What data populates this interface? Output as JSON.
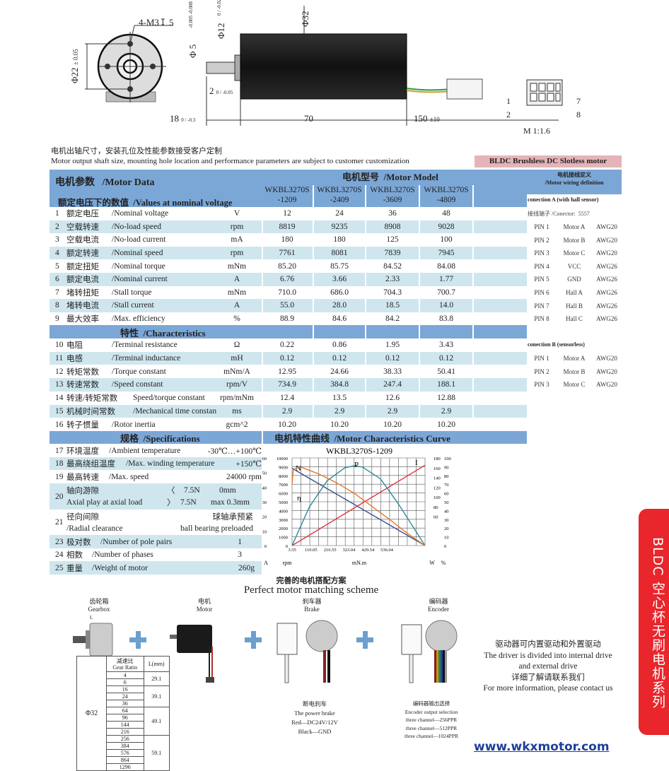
{
  "drawing": {
    "thread": "4-M3↧ 5",
    "d22": "Φ22",
    "d22_tol": "± 0.05",
    "d5": "Φ 5",
    "d5_tol_hi": "-0.005",
    "d5_tol_lo": "-0.008",
    "d12": "Φ12",
    "d12_tol": "0 / -0.02",
    "d32": "Φ32",
    "flange": "2",
    "flange_tol": "0 / -0.05",
    "shaft_len": "18",
    "shaft_tol": "0 / -0.3",
    "body_len": "70",
    "wire_len": "150",
    "wire_tol": "±10",
    "pin1": "1",
    "pin2": "2",
    "pin7": "7",
    "pin8": "8",
    "scale": "M 1:1.6"
  },
  "notes": {
    "cn": "电机出轴尺寸，安装孔位及性能参数接受客户定制",
    "en": "Motor output shaft size, mounting hole location and performance parameters are subject to customer customization",
    "bldc": "BLDC   Brushless DC Slotless motor"
  },
  "table": {
    "title_cn": "电机参数",
    "title_en": "/Motor Data",
    "sub_cn": "额定电压下的数值",
    "sub_en": "/Values at nominal voltage",
    "model_cn": "电机型号",
    "model_en": "/Motor Model",
    "models": [
      {
        "l1": "WKBL3270S",
        "l2": "-1209"
      },
      {
        "l1": "WKBL3270S",
        "l2": "-2409"
      },
      {
        "l1": "WKBL3270S",
        "l2": "-3609"
      },
      {
        "l1": "WKBL3270S",
        "l2": "-4809"
      }
    ],
    "rows1": [
      {
        "n": "1",
        "cn": "额定电压",
        "en": "/Nominal voltage",
        "unit": "V",
        "vals": [
          "12",
          "24",
          "36",
          "48"
        ]
      },
      {
        "n": "2",
        "cn": "空载转速",
        "en": "/No-load speed",
        "unit": "rpm",
        "vals": [
          "8819",
          "9235",
          "8908",
          "9028"
        ]
      },
      {
        "n": "3",
        "cn": "空载电流",
        "en": "/No-load current",
        "unit": "mA",
        "vals": [
          "180",
          "180",
          "125",
          "100"
        ]
      },
      {
        "n": "4",
        "cn": "额定转速",
        "en": "/Nominal speed",
        "unit": "rpm",
        "vals": [
          "7761",
          "8081",
          "7839",
          "7945"
        ]
      },
      {
        "n": "5",
        "cn": "额定扭矩",
        "en": "/Nominal torque",
        "unit": "mNm",
        "vals": [
          "85.20",
          "85.75",
          "84.52",
          "84.08"
        ]
      },
      {
        "n": "6",
        "cn": "额定电流",
        "en": "/Nominal current",
        "unit": "A",
        "vals": [
          "6.76",
          "3.66",
          "2.33",
          "1.77"
        ]
      },
      {
        "n": "7",
        "cn": "堵转扭矩",
        "en": "/Stall torque",
        "unit": "mNm",
        "vals": [
          "710.0",
          "686.0",
          "704.3",
          "700.7"
        ]
      },
      {
        "n": "8",
        "cn": "堵转电流",
        "en": "/Stall current",
        "unit": "A",
        "vals": [
          "55.0",
          "28.0",
          "18.5",
          "14.0"
        ]
      },
      {
        "n": "9",
        "cn": "最大效率",
        "en": "/Max. efficiency",
        "unit": "%",
        "vals": [
          "88.9",
          "84.6",
          "84.2",
          "83.8"
        ]
      }
    ],
    "sect2_cn": "特性",
    "sect2_en": "/Characteristics",
    "rows2": [
      {
        "n": "10",
        "cn": "电阻",
        "en": "/Terminal resistance",
        "unit": "Ω",
        "vals": [
          "0.22",
          "0.86",
          "1.95",
          "3.43"
        ]
      },
      {
        "n": "11",
        "cn": "电感",
        "en": "/Terminal inductance",
        "unit": "mH",
        "vals": [
          "0.12",
          "0.12",
          "0.12",
          "0.12"
        ]
      },
      {
        "n": "12",
        "cn": "转矩常数",
        "en": "/Torque constant",
        "unit": "mNm/A",
        "vals": [
          "12.95",
          "24.66",
          "38.33",
          "50.41"
        ]
      },
      {
        "n": "13",
        "cn": "转速常数",
        "en": "/Speed constant",
        "unit": "rpm/V",
        "vals": [
          "734.9",
          "384.8",
          "247.4",
          "188.1"
        ]
      },
      {
        "n": "14",
        "cn": "转速/转矩常数",
        "en": "Speed/torque constant",
        "unit": "rpm/mNm",
        "vals": [
          "12.4",
          "13.5",
          "12.6",
          "12.88"
        ]
      },
      {
        "n": "15",
        "cn": "机械时间常数",
        "en": "/Mechanical time constan",
        "unit": "ms",
        "vals": [
          "2.9",
          "2.9",
          "2.9",
          "2.9"
        ]
      },
      {
        "n": "16",
        "cn": "转子惯量",
        "en": "/Rotor inertia",
        "unit": "gcm^2",
        "vals": [
          "10.20",
          "10.20",
          "10.20",
          "10.20"
        ]
      }
    ],
    "sect3_cn": "规格",
    "sect3_en": "/Specifications",
    "curve_cn": "电机特性曲线",
    "curve_en": "/Motor Characteristics Curve",
    "specs": [
      {
        "n": "17",
        "cn": "环境温度",
        "en": "/Ambient temperature",
        "value": "-30℃…+100℃"
      },
      {
        "n": "18",
        "cn": "最高绕组温度",
        "en": "/Max. winding temperature",
        "value": "+150℃"
      },
      {
        "n": "19",
        "cn": "最高转速",
        "en": "/Max. speed",
        "value": "24000 rpm"
      },
      {
        "n": "20",
        "cn": "轴向游隙",
        "en": "Axial play at axial load",
        "v1a": "〈",
        "v1b": "7.5N",
        "v1c": "0mm",
        "v2a": "〉",
        "v2b": "7.5N",
        "v2c": "max 0.3mm"
      },
      {
        "n": "21",
        "cn": "径向间隙",
        "en": "/Radial clearance",
        "v1": "球轴承预紧",
        "v2": "ball bearing  preloaded"
      },
      {
        "n": "23",
        "cn": "极对数",
        "en": "/Number of pole pairs",
        "value": "1"
      },
      {
        "n": "24",
        "cn": "相数",
        "en": "/Number of phases",
        "value": "3"
      },
      {
        "n": "25",
        "cn": "重量",
        "en": "/Weight of motor",
        "value": "260g"
      }
    ]
  },
  "wiring": {
    "title_cn": "电机接线定义",
    "title_en": "/Motor wiring definition",
    "connA": "conection A (with hall sensor)",
    "connector_label": "接线端子 /Conector:",
    "connector": "5557",
    "pinsA": [
      [
        "PIN 1",
        "Motor  A",
        "AWG20"
      ],
      [
        "PIN 2",
        "Motor  B",
        "AWG20"
      ],
      [
        "PIN 3",
        "Motor  C",
        "AWG20"
      ],
      [
        "PIN 4",
        "VCC",
        "AWG26"
      ],
      [
        "PIN 5",
        "GND",
        "AWG26"
      ],
      [
        "PIN 6",
        "Hall  A",
        "AWG26"
      ],
      [
        "PIN 7",
        "Hall  B",
        "AWG26"
      ],
      [
        "PIN 8",
        "Hall  C",
        "AWG26"
      ]
    ],
    "connB": "conection B (sensorless)",
    "pinsB": [
      [
        "PIN 1",
        "Motor  A",
        "AWG20"
      ],
      [
        "PIN 2",
        "Motor  B",
        "AWG20"
      ],
      [
        "PIN 3",
        "Motor  C",
        "AWG20"
      ]
    ]
  },
  "chart_data": {
    "type": "line",
    "title": "WKBL3270S-1209",
    "xlabel": "mN.m",
    "xlim": [
      3.55,
      750
    ],
    "xticks": [
      3.55,
      110.05,
      216.55,
      323.04,
      429.54,
      536.04
    ],
    "axes": {
      "A": {
        "label": "A",
        "range": [
          0,
          60
        ],
        "ticks": [
          0,
          10,
          20,
          30,
          40,
          50,
          60
        ]
      },
      "rpm": {
        "label": "rpm",
        "range": [
          0,
          10000
        ],
        "ticks": [
          0,
          1000,
          2000,
          3000,
          4000,
          5000,
          6000,
          7000,
          8000,
          9000,
          10000
        ]
      },
      "W": {
        "label": "W",
        "range": [
          0,
          180
        ],
        "ticks": [
          60,
          80,
          100,
          120,
          140,
          160,
          180
        ]
      },
      "pct": {
        "label": "%",
        "range": [
          0,
          100
        ],
        "ticks": [
          0,
          10,
          20,
          30,
          40,
          50,
          60,
          70,
          80,
          90,
          100
        ]
      }
    },
    "grid": true,
    "series": [
      {
        "name": "N",
        "axis": "rpm",
        "color": "#3a4f8f",
        "points": [
          [
            3.55,
            8819
          ],
          [
            750,
            0
          ]
        ]
      },
      {
        "name": "I",
        "axis": "A",
        "color": "#e03040",
        "points": [
          [
            3.55,
            0
          ],
          [
            750,
            55
          ]
        ]
      },
      {
        "name": "P",
        "axis": "W",
        "color": "#2f8a9a",
        "points": [
          [
            3.55,
            0
          ],
          [
            100,
            79
          ],
          [
            200,
            133
          ],
          [
            300,
            160
          ],
          [
            355,
            164
          ],
          [
            400,
            161
          ],
          [
            500,
            137
          ],
          [
            600,
            86
          ],
          [
            750,
            0
          ]
        ]
      },
      {
        "name": "η",
        "axis": "pct",
        "color": "#e07a30",
        "points": [
          [
            3.55,
            70
          ],
          [
            10,
            86
          ],
          [
            30,
            89
          ],
          [
            60,
            89
          ],
          [
            150,
            82
          ],
          [
            250,
            72
          ],
          [
            350,
            60
          ],
          [
            450,
            45
          ],
          [
            550,
            30
          ],
          [
            650,
            14
          ],
          [
            750,
            0
          ]
        ]
      }
    ]
  },
  "matching": {
    "title_cn": "完善的电机搭配方案",
    "title_en": "Perfect motor matching scheme",
    "gearbox_cn": "齿轮箱",
    "gearbox_en": "Gearbox",
    "gear_L": "L",
    "motor_cn": "电机",
    "motor_en": "Motor",
    "brake_cn": "刹车器",
    "brake_en": "Brake",
    "encoder_cn": "编码器",
    "encoder_en": "Encoder",
    "gear_dia": "Φ32",
    "gear_ratio_cn": "减速比",
    "gear_ratio_en": "Gear Ratio",
    "gear_L_head": "L(mm)",
    "gear_groups": [
      {
        "ratios": [
          "4",
          "6"
        ],
        "L": "29.1"
      },
      {
        "ratios": [
          "16",
          "24",
          "36"
        ],
        "L": "39.1"
      },
      {
        "ratios": [
          "64",
          "96",
          "144",
          "216"
        ],
        "L": "49.1"
      },
      {
        "ratios": [
          "256",
          "384",
          "576",
          "864",
          "1296"
        ],
        "L": "59.1"
      }
    ],
    "brake_text": [
      "断电刹车",
      "The power brake",
      "Red—DC24V/12V",
      "Black—GND"
    ],
    "encoder_text": [
      "编码器输出选择",
      "Encoder output selection",
      "three channel—256PPR",
      "three channel—512PPR",
      "three channel—1024PPR"
    ],
    "driver_text": [
      "驱动器可内置驱动和外置驱动",
      "The driver is divided into internal drive",
      "and external drive",
      "详细了解请联系我们",
      "For more information, please contact us"
    ]
  },
  "side_tab": "BLDC 空心杯无刷电机系列",
  "website": "www.wkxmotor.com",
  "colors": {
    "header": "#7ba7d6",
    "stripe": "#cfe6ee",
    "bldc_bar": "#e4b4b8",
    "side_tab": "#e8262c",
    "link": "#1f3f9a",
    "plus": "#6a9fd0"
  }
}
